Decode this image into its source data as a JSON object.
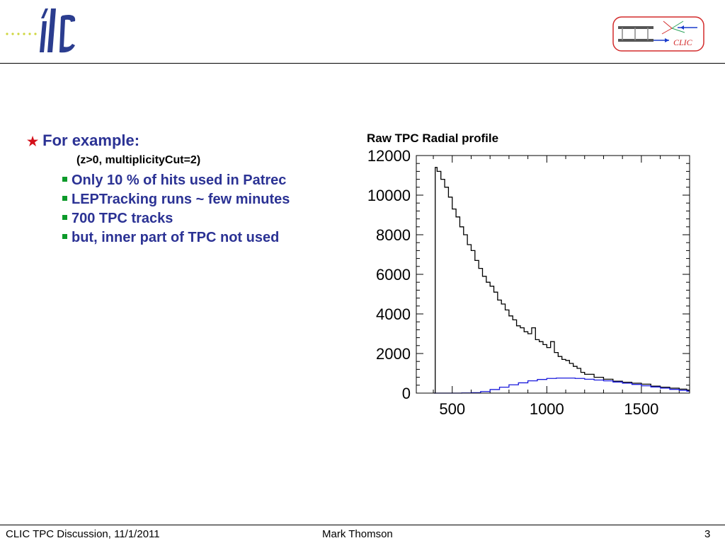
{
  "header": {
    "left_logo_text": "ilc",
    "right_logo_text": "CLIC"
  },
  "slide": {
    "main_bullet": "For example:",
    "note": "(z>0, multiplicityCut=2)",
    "sub_bullets": [
      "Only 10 % of hits used in Patrec",
      "LEPTracking runs ~ few minutes",
      "700 TPC tracks",
      "but, inner part of TPC not used"
    ]
  },
  "footer": {
    "left": "CLIC TPC Discussion, 11/1/2011",
    "center": "Mark Thomson",
    "page": "3"
  },
  "colors": {
    "bullet_text": "#2b3294",
    "star": "#d4101a",
    "square": "#0c9a2a",
    "series_black": "#000000",
    "series_blue": "#1a1adc"
  },
  "chart_data": {
    "type": "line",
    "title": "Raw TPC Radial profile",
    "xlabel": "",
    "ylabel": "",
    "xlim": [
      310,
      1755
    ],
    "ylim": [
      0,
      12000
    ],
    "x_ticks": [
      500,
      1000,
      1500
    ],
    "y_ticks": [
      0,
      2000,
      4000,
      6000,
      8000,
      10000,
      12000
    ],
    "x_tick_labels": [
      "500",
      "1000",
      "1500"
    ],
    "y_tick_labels": [
      "0",
      "2000",
      "4000",
      "6000",
      "8000",
      "10000",
      "12000"
    ],
    "series": [
      {
        "color": "#000000",
        "step": true,
        "x": [
          405,
          410,
          420,
          440,
          460,
          480,
          500,
          520,
          540,
          560,
          580,
          600,
          620,
          640,
          660,
          680,
          700,
          720,
          740,
          760,
          780,
          800,
          820,
          840,
          860,
          880,
          900,
          920,
          940,
          960,
          980,
          1000,
          1020,
          1040,
          1060,
          1080,
          1100,
          1120,
          1140,
          1160,
          1180,
          1200,
          1250,
          1300,
          1350,
          1400,
          1450,
          1500,
          1550,
          1600,
          1650,
          1700,
          1740
        ],
        "y": [
          0,
          11400,
          11200,
          10800,
          10400,
          9900,
          9300,
          8900,
          8400,
          8000,
          7500,
          7200,
          6700,
          6300,
          5900,
          5600,
          5400,
          5100,
          4700,
          4500,
          4200,
          3900,
          3700,
          3400,
          3300,
          3100,
          3000,
          3300,
          2700,
          2600,
          2450,
          2300,
          2600,
          2050,
          1850,
          1700,
          1650,
          1500,
          1350,
          1250,
          1050,
          950,
          800,
          700,
          600,
          550,
          500,
          450,
          350,
          300,
          250,
          200,
          150
        ]
      },
      {
        "color": "#1a1adc",
        "step": true,
        "x": [
          405,
          450,
          500,
          550,
          600,
          650,
          700,
          750,
          800,
          850,
          900,
          950,
          1000,
          1050,
          1100,
          1150,
          1200,
          1250,
          1300,
          1350,
          1400,
          1450,
          1500,
          1550,
          1600,
          1650,
          1700,
          1740
        ],
        "y": [
          0,
          0,
          0,
          10,
          20,
          80,
          180,
          300,
          420,
          520,
          620,
          690,
          740,
          760,
          760,
          740,
          700,
          660,
          620,
          560,
          500,
          440,
          370,
          310,
          250,
          190,
          140,
          100
        ]
      }
    ],
    "grid": false,
    "legend": "none"
  }
}
